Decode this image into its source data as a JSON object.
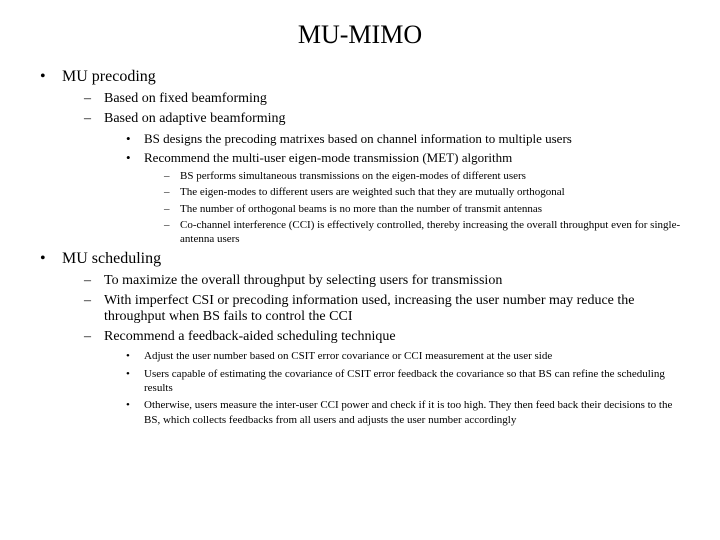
{
  "title": "MU-MIMO",
  "sections": [
    {
      "heading": "MU precoding",
      "items": [
        {
          "text": "Based on fixed beamforming"
        },
        {
          "text": "Based on adaptive beamforming",
          "sub": [
            {
              "text": "BS designs the precoding matrixes based on channel information to multiple users"
            },
            {
              "text": "Recommend the multi-user eigen-mode transmission (MET) algorithm",
              "sub": [
                {
                  "text": "BS performs simultaneous transmissions on the eigen-modes of different users"
                },
                {
                  "text": "The eigen-modes to different users are weighted such that they are mutually orthogonal"
                },
                {
                  "text": "The number of orthogonal beams is no more than the number of transmit antennas"
                },
                {
                  "text": "Co-channel interference (CCI) is effectively controlled, thereby increasing the overall throughput even for single-antenna users"
                }
              ]
            }
          ]
        }
      ]
    },
    {
      "heading": "MU scheduling",
      "items": [
        {
          "text": "To maximize the overall throughput by selecting users for transmission"
        },
        {
          "text": "With imperfect CSI or precoding information used, increasing the user number may reduce the throughput when BS fails to control the CCI"
        },
        {
          "text": "Recommend a feedback-aided scheduling technique",
          "sub": [
            {
              "text": "Adjust the user number based on CSIT error covariance or CCI measurement at the user side"
            },
            {
              "text": "Users capable of estimating the covariance of CSIT error feedback the covariance so that BS can refine the scheduling results"
            },
            {
              "text": "Otherwise, users measure the inter-user CCI power and check if it is too high. They then feed back their decisions to the BS, which collects feedbacks from all users and adjusts the user number accordingly"
            }
          ]
        }
      ]
    }
  ]
}
